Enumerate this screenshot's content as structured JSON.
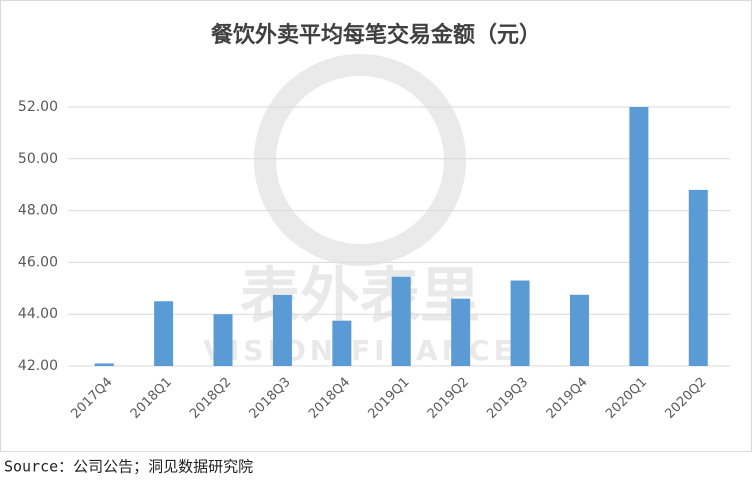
{
  "chart_data": {
    "type": "bar",
    "title": "餐饮外卖平均每笔交易金额（元）",
    "categories": [
      "2017Q4",
      "2018Q1",
      "2018Q2",
      "2018Q3",
      "2018Q4",
      "2019Q1",
      "2019Q2",
      "2019Q3",
      "2019Q4",
      "2020Q1",
      "2020Q2"
    ],
    "values": [
      42.1,
      44.5,
      44.0,
      44.75,
      43.75,
      45.45,
      44.6,
      45.3,
      44.75,
      52.0,
      48.8
    ],
    "color": "#5b9bd5",
    "ylim": [
      42,
      52
    ],
    "yticks": [
      {
        "value": 42,
        "label": "42.00"
      },
      {
        "value": 44,
        "label": "44.00"
      },
      {
        "value": 46,
        "label": "46.00"
      },
      {
        "value": 48,
        "label": "48.00"
      },
      {
        "value": 50,
        "label": "50.00"
      },
      {
        "value": 52,
        "label": "52.00"
      }
    ],
    "grid": true,
    "watermark": [
      "表外表里",
      "VISION FINANCE"
    ],
    "source": "Source：公司公告；洞见数据研究院"
  }
}
